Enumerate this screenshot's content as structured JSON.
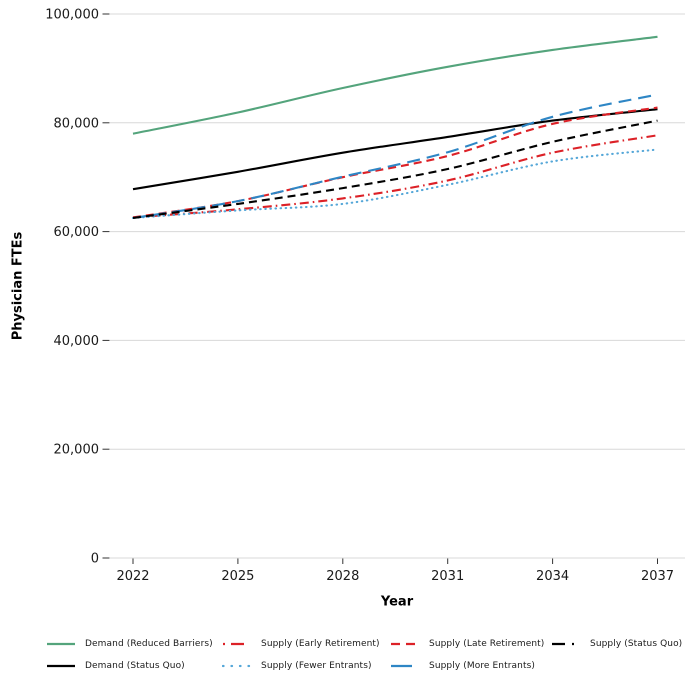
{
  "page": {
    "background": "#ffffff"
  },
  "chart_data": {
    "type": "line",
    "title": "",
    "xlabel": "Year",
    "ylabel": "Physician FTEs",
    "x": [
      2022,
      2025,
      2028,
      2031,
      2034,
      2037
    ],
    "xlim": [
      2022,
      2037
    ],
    "ylim": [
      0,
      100000
    ],
    "ytick_values": [
      0,
      20000,
      40000,
      60000,
      80000,
      100000
    ],
    "ytick_labels": [
      "0",
      "20,000",
      "40,000",
      "60,000",
      "80,000",
      "100,000"
    ],
    "xtick_labels": [
      "2022",
      "2025",
      "2028",
      "2031",
      "2034",
      "2037"
    ],
    "grid": "horizontal-only",
    "legend_position": "bottom",
    "colors": {
      "demand_green": "#54a47c",
      "black": "#000000",
      "red": "#dc2127",
      "blue": "#2e86c5",
      "light_blue": "#55a7d8",
      "gridline": "#d8d8d8",
      "tick": "#333333",
      "text": "#1a1a1a"
    },
    "series": [
      {
        "name": "Demand (Reduced Barriers)",
        "color": "#54a47c",
        "style": "solid",
        "values": [
          78000,
          81900,
          86400,
          90300,
          93400,
          95800
        ]
      },
      {
        "name": "Demand (Status Quo)",
        "color": "#000000",
        "style": "solid",
        "values": [
          67800,
          71000,
          74500,
          77400,
          80400,
          82500
        ]
      },
      {
        "name": "Supply (Early Retirement)",
        "color": "#dc2127",
        "style": "dashdot",
        "values": [
          62600,
          64100,
          66100,
          69400,
          74500,
          77700
        ]
      },
      {
        "name": "Supply (Fewer Entrants)",
        "color": "#55a7d8",
        "style": "dotted",
        "values": [
          62500,
          63900,
          65100,
          68600,
          72900,
          75100
        ]
      },
      {
        "name": "Supply (Late Retirement)",
        "color": "#dc2127",
        "style": "dashed",
        "values": [
          62600,
          65600,
          70000,
          73900,
          79800,
          82800
        ]
      },
      {
        "name": "Supply (More Entrants)",
        "color": "#2e86c5",
        "style": "longdash",
        "values": [
          62500,
          65600,
          70100,
          74600,
          81100,
          85200
        ]
      },
      {
        "name": "Supply (Status Quo)",
        "color": "#000000",
        "style": "dashdot2",
        "values": [
          62500,
          65100,
          68000,
          71500,
          76500,
          80400
        ]
      }
    ],
    "legend_layout": {
      "columns": 4,
      "rows": 2,
      "fill": "column-major"
    }
  }
}
